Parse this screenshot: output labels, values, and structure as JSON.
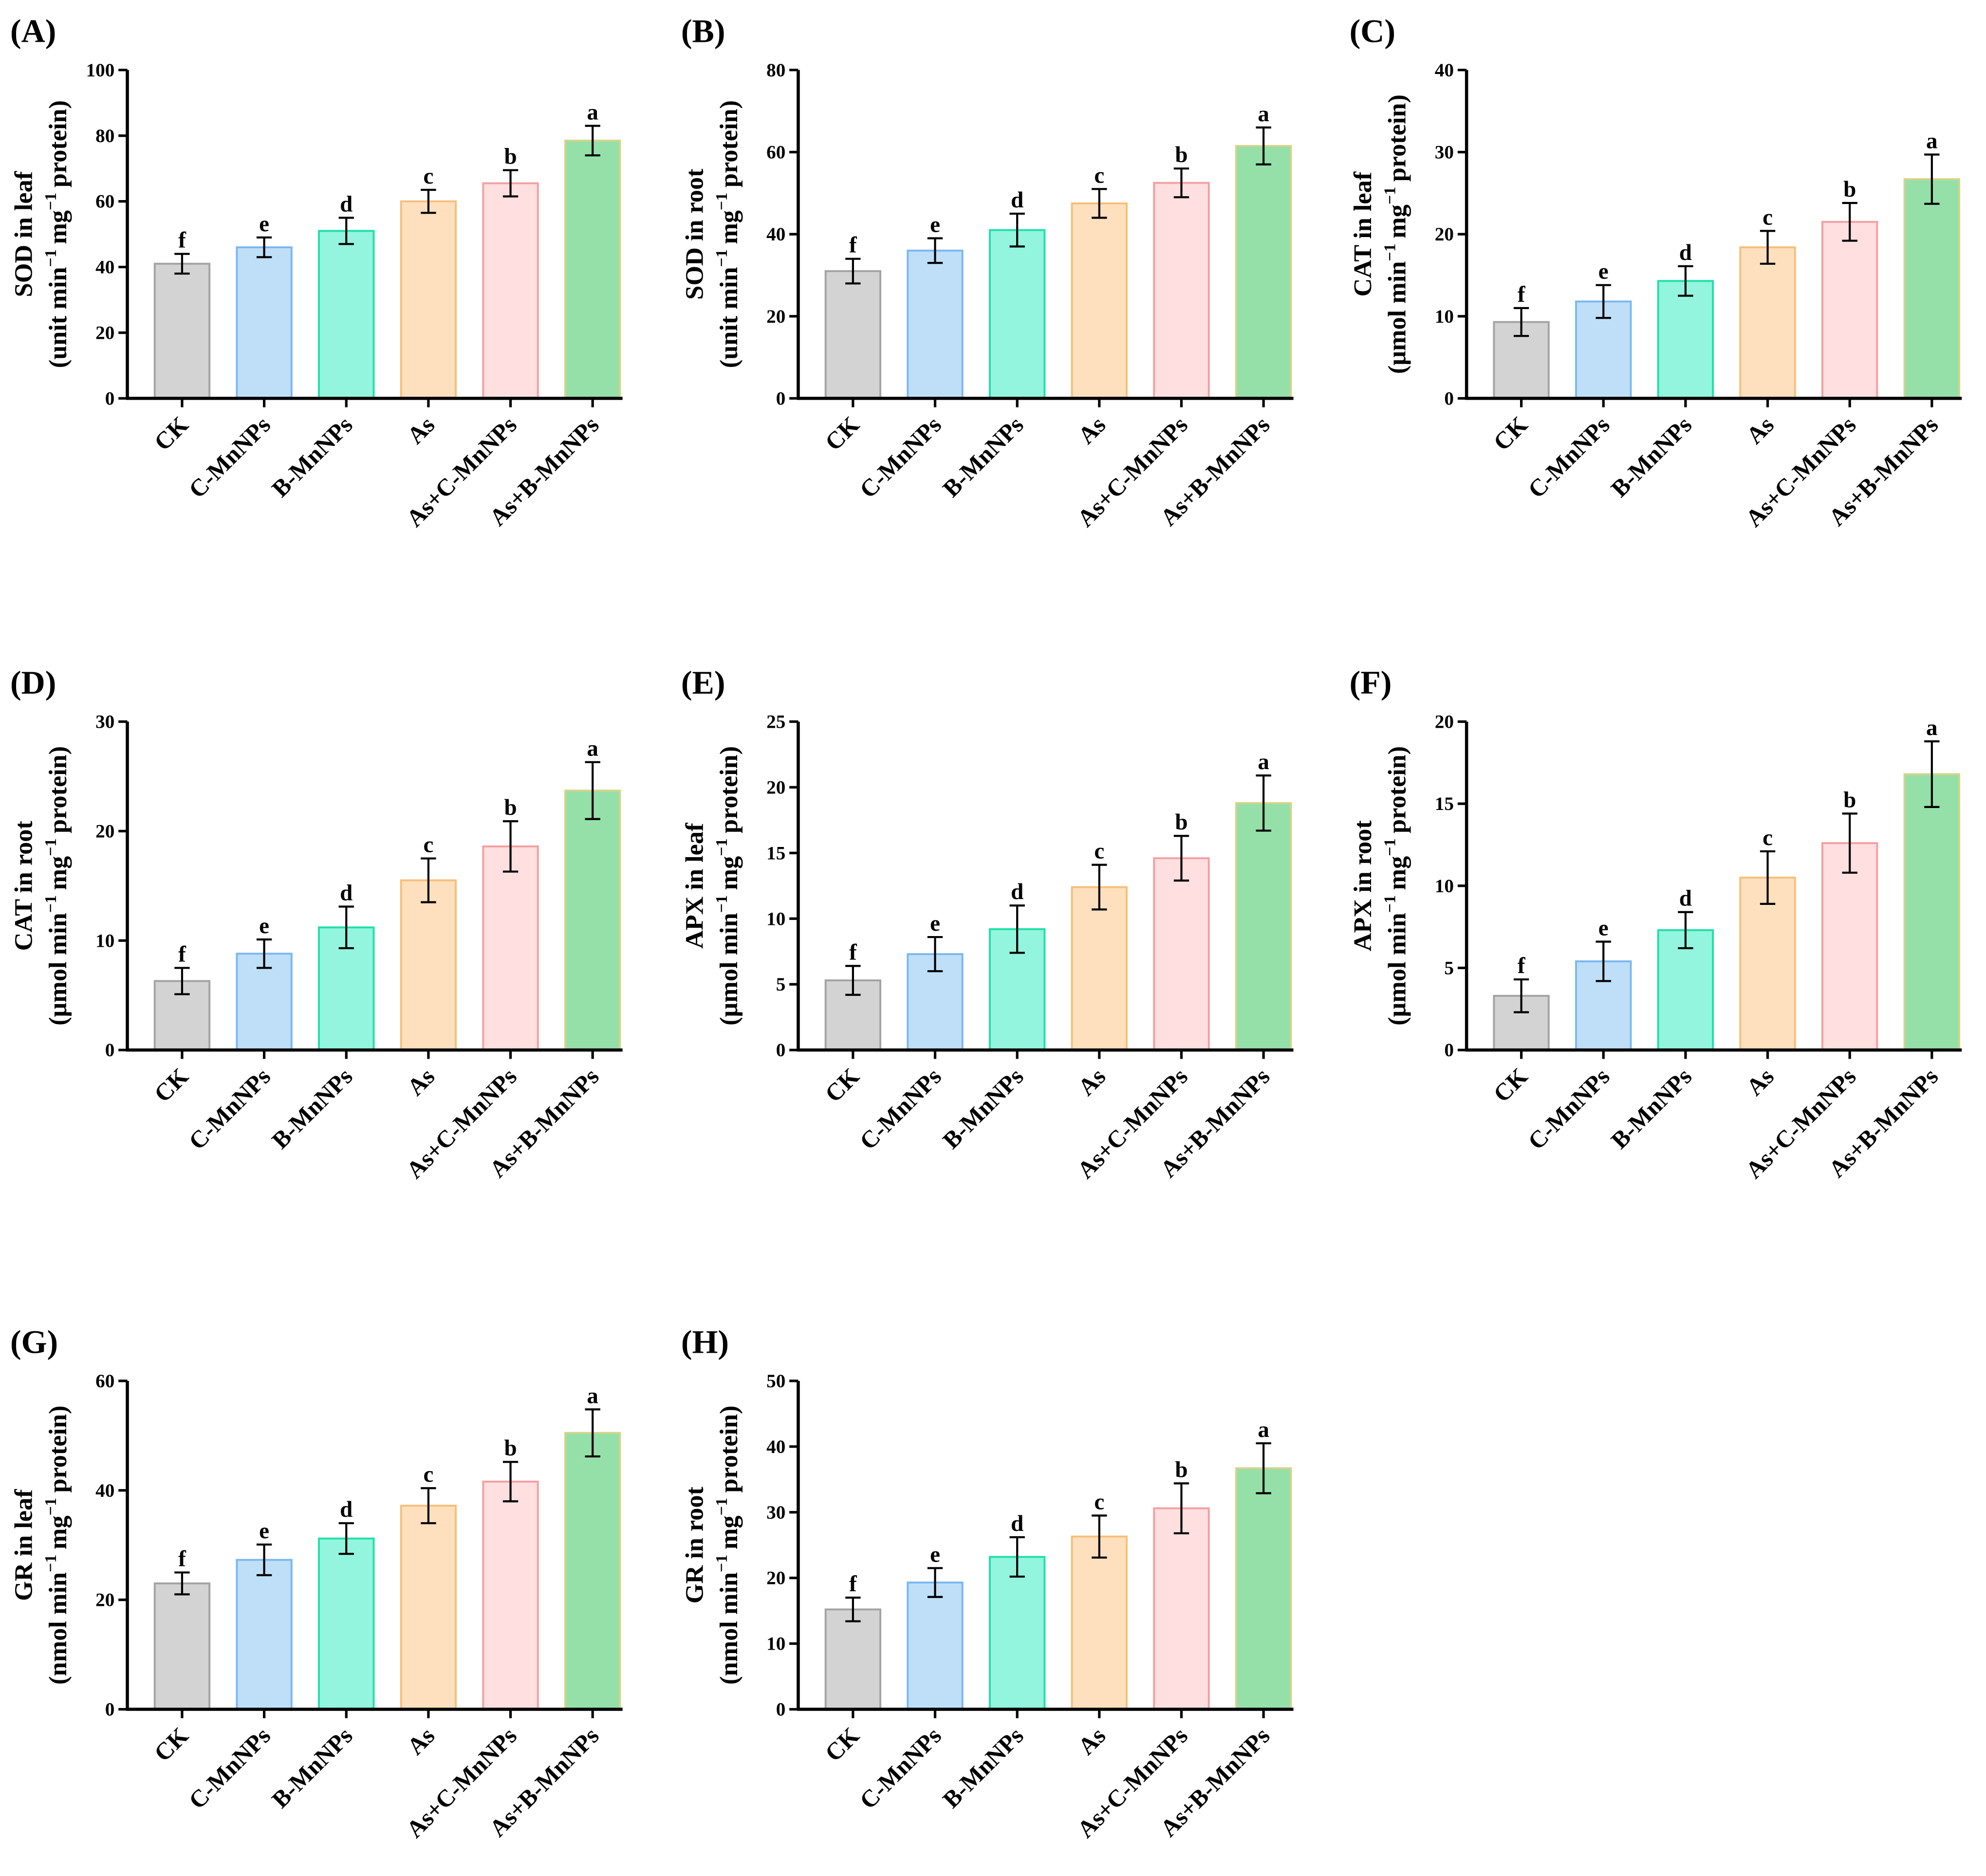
{
  "styles": {
    "fills": [
      "#d3d3d3",
      "#bfdff8",
      "#93f5de",
      "#ffe0be",
      "#ffdfe0",
      "#95e0a8"
    ],
    "strokes": [
      "#a3a3a3",
      "#7ab8f0",
      "#1fe0a8",
      "#f7be7a",
      "#f2a0a2",
      "#d4d48a"
    ]
  },
  "chart_data": [
    {
      "type": "bar",
      "panel": "(A)",
      "ylabel": "SOD in leaf",
      "yunit": [
        "(unit min",
        "−1",
        "mg",
        "−1",
        "protein)"
      ],
      "ylim": [
        0,
        100
      ],
      "yticks": [
        0,
        20,
        40,
        60,
        80,
        100
      ],
      "categories": [
        "CK",
        "C-MnNPs",
        "B-MnNPs",
        "As",
        "As+C-MnNPs",
        "As+B-MnNPs"
      ],
      "values": [
        41,
        46,
        51,
        60,
        65.5,
        78.5
      ],
      "errors": [
        3,
        3,
        4,
        3.5,
        4,
        4.5
      ],
      "letters": [
        "f",
        "e",
        "d",
        "c",
        "b",
        "a"
      ]
    },
    {
      "type": "bar",
      "panel": "(B)",
      "ylabel": "SOD in root",
      "yunit": [
        "(unit min",
        "−1",
        "mg",
        "−1",
        "protein)"
      ],
      "ylim": [
        0,
        80
      ],
      "yticks": [
        0,
        20,
        40,
        60,
        80
      ],
      "categories": [
        "CK",
        "C-MnNPs",
        "B-MnNPs",
        "As",
        "As+C-MnNPs",
        "As+B-MnNPs"
      ],
      "values": [
        31,
        36,
        41,
        47.5,
        52.5,
        61.5
      ],
      "errors": [
        3,
        3,
        4,
        3.5,
        3.5,
        4.5
      ],
      "letters": [
        "f",
        "e",
        "d",
        "c",
        "b",
        "a"
      ]
    },
    {
      "type": "bar",
      "panel": "(C)",
      "ylabel": "CAT in leaf",
      "yunit": [
        "(μmol min",
        "−1",
        "mg",
        "−1",
        "protein)"
      ],
      "ylim": [
        0,
        40
      ],
      "yticks": [
        0,
        10,
        20,
        30,
        40
      ],
      "categories": [
        "CK",
        "C-MnNPs",
        "B-MnNPs",
        "As",
        "As+C-MnNPs",
        "As+B-MnNPs"
      ],
      "values": [
        9.3,
        11.8,
        14.3,
        18.4,
        21.5,
        26.7
      ],
      "errors": [
        1.7,
        2,
        1.8,
        2,
        2.3,
        3
      ],
      "letters": [
        "f",
        "e",
        "d",
        "c",
        "b",
        "a"
      ]
    },
    {
      "type": "bar",
      "panel": "(D)",
      "ylabel": "CAT in root",
      "yunit": [
        "(μmol min",
        "−1",
        "mg",
        "−1",
        "protein)"
      ],
      "ylim": [
        0,
        30
      ],
      "yticks": [
        0,
        10,
        20,
        30
      ],
      "categories": [
        "CK",
        "C-MnNPs",
        "B-MnNPs",
        "As",
        "As+C-MnNPs",
        "As+B-MnNPs"
      ],
      "values": [
        6.3,
        8.8,
        11.2,
        15.5,
        18.6,
        23.7
      ],
      "errors": [
        1.2,
        1.3,
        1.9,
        2,
        2.3,
        2.6
      ],
      "letters": [
        "f",
        "e",
        "d",
        "c",
        "b",
        "a"
      ]
    },
    {
      "type": "bar",
      "panel": "(E)",
      "ylabel": "APX in leaf",
      "yunit": [
        "(μmol min",
        "−1",
        "mg",
        "−1",
        "protein)"
      ],
      "ylim": [
        0,
        25
      ],
      "yticks": [
        0,
        5,
        10,
        15,
        20,
        25
      ],
      "categories": [
        "CK",
        "C-MnNPs",
        "B-MnNPs",
        "As",
        "As+C-MnNPs",
        "As+B-MnNPs"
      ],
      "values": [
        5.3,
        7.3,
        9.2,
        12.4,
        14.6,
        18.8
      ],
      "errors": [
        1.1,
        1.3,
        1.8,
        1.7,
        1.7,
        2.1
      ],
      "letters": [
        "f",
        "e",
        "d",
        "c",
        "b",
        "a"
      ]
    },
    {
      "type": "bar",
      "panel": "(F)",
      "ylabel": "APX in root",
      "yunit": [
        "(μmol min",
        "−1",
        "mg",
        "−1",
        "protein)"
      ],
      "ylim": [
        0,
        20
      ],
      "yticks": [
        0,
        5,
        10,
        15,
        20
      ],
      "categories": [
        "CK",
        "C-MnNPs",
        "B-MnNPs",
        "As",
        "As+C-MnNPs",
        "As+B-MnNPs"
      ],
      "values": [
        3.3,
        5.4,
        7.3,
        10.5,
        12.6,
        16.8
      ],
      "errors": [
        1,
        1.2,
        1.1,
        1.6,
        1.8,
        2
      ],
      "letters": [
        "f",
        "e",
        "d",
        "c",
        "b",
        "a"
      ]
    },
    {
      "type": "bar",
      "panel": "(G)",
      "ylabel": "GR in leaf",
      "yunit": [
        "(nmol min",
        "−1",
        "mg",
        "−1",
        "protein)"
      ],
      "ylim": [
        0,
        60
      ],
      "yticks": [
        0,
        20,
        40,
        60
      ],
      "categories": [
        "CK",
        "C-MnNPs",
        "B-MnNPs",
        "As",
        "As+C-MnNPs",
        "As+B-MnNPs"
      ],
      "values": [
        23,
        27.3,
        31.2,
        37.2,
        41.6,
        50.5
      ],
      "errors": [
        2,
        2.8,
        2.8,
        3.2,
        3.6,
        4.3
      ],
      "letters": [
        "f",
        "e",
        "d",
        "c",
        "b",
        "a"
      ]
    },
    {
      "type": "bar",
      "panel": "(H)",
      "ylabel": "GR in root",
      "yunit": [
        "(nmol min",
        "−1",
        "mg",
        "−1",
        "protein)"
      ],
      "ylim": [
        0,
        50
      ],
      "yticks": [
        0,
        10,
        20,
        30,
        40,
        50
      ],
      "categories": [
        "CK",
        "C-MnNPs",
        "B-MnNPs",
        "As",
        "As+C-MnNPs",
        "As+B-MnNPs"
      ],
      "values": [
        15.2,
        19.3,
        23.2,
        26.3,
        30.6,
        36.7
      ],
      "errors": [
        1.8,
        2.2,
        3,
        3.2,
        3.8,
        3.8
      ],
      "letters": [
        "f",
        "e",
        "d",
        "c",
        "b",
        "a"
      ]
    }
  ]
}
